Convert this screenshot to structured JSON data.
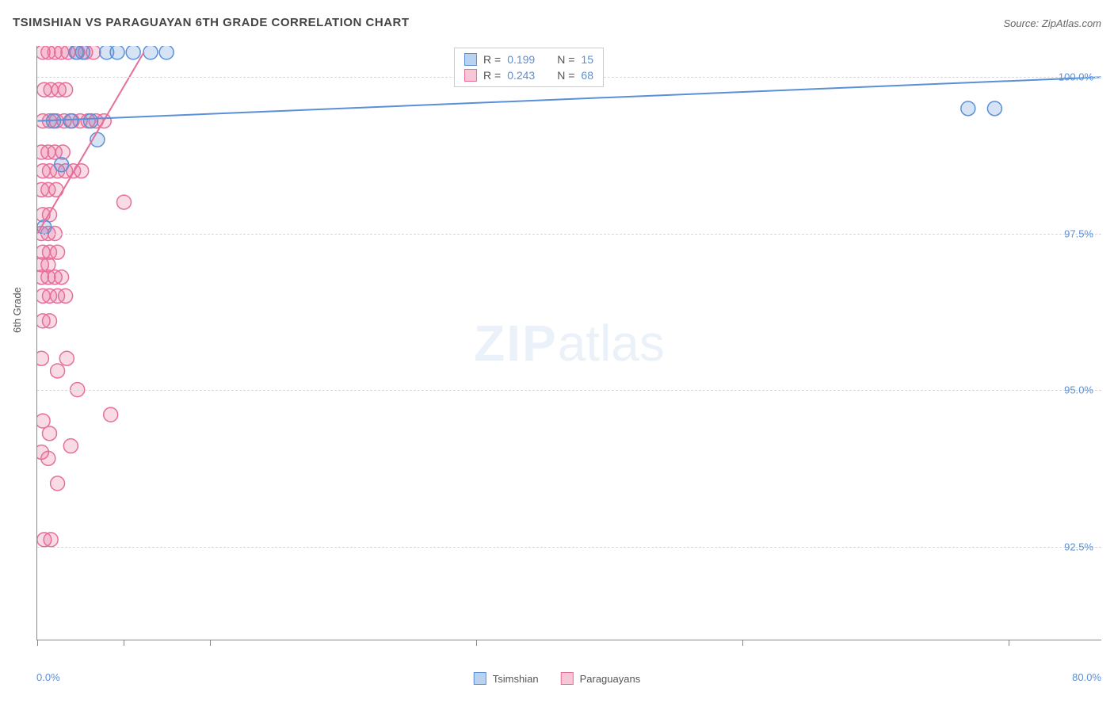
{
  "title": "TSIMSHIAN VS PARAGUAYAN 6TH GRADE CORRELATION CHART",
  "source": "Source: ZipAtlas.com",
  "ylabel": "6th Grade",
  "watermark_bold": "ZIP",
  "watermark_light": "atlas",
  "chart": {
    "type": "scatter",
    "background_color": "#ffffff",
    "grid_color": "#d8d8d8",
    "axis_color": "#888888",
    "text_color": "#555555",
    "value_color": "#5b8fd6",
    "xlim": [
      0.0,
      80.0
    ],
    "ylim": [
      91.0,
      100.5
    ],
    "yticks": [
      {
        "value": 100.0,
        "label": "100.0%"
      },
      {
        "value": 97.5,
        "label": "97.5%"
      },
      {
        "value": 95.0,
        "label": "95.0%"
      },
      {
        "value": 92.5,
        "label": "92.5%"
      }
    ],
    "xticks_at": [
      0,
      6.5,
      13,
      33,
      53,
      73
    ],
    "xaxis_labels": {
      "left": "0.0%",
      "right": "80.0%"
    },
    "marker_radius": 9,
    "marker_stroke_width": 1.5,
    "marker_fill_opacity": 0.25,
    "trend_line_width": 2
  },
  "series": {
    "tsimshian": {
      "label": "Tsimshian",
      "color": "#5b8fd6",
      "fill": "#b9d2f0",
      "R_label": "R = ",
      "R_value": "0.199",
      "N_label": "N = ",
      "N_value": "15",
      "trend": {
        "x1": 0.0,
        "y1": 99.3,
        "x2": 80.0,
        "y2": 100.0
      },
      "points": [
        {
          "x": 0.5,
          "y": 97.6
        },
        {
          "x": 1.2,
          "y": 99.3
        },
        {
          "x": 1.8,
          "y": 98.6
        },
        {
          "x": 2.5,
          "y": 99.3
        },
        {
          "x": 2.9,
          "y": 100.4
        },
        {
          "x": 3.4,
          "y": 100.4
        },
        {
          "x": 4.0,
          "y": 99.3
        },
        {
          "x": 4.5,
          "y": 99.0
        },
        {
          "x": 5.2,
          "y": 100.4
        },
        {
          "x": 6.0,
          "y": 100.4
        },
        {
          "x": 7.2,
          "y": 100.4
        },
        {
          "x": 8.5,
          "y": 100.4
        },
        {
          "x": 9.7,
          "y": 100.4
        },
        {
          "x": 70.0,
          "y": 99.5
        },
        {
          "x": 72.0,
          "y": 99.5
        }
      ]
    },
    "paraguayans": {
      "label": "Paraguayans",
      "color": "#e66f9a",
      "fill": "#f7c6d7",
      "R_label": "R = ",
      "R_value": "0.243",
      "N_label": "N = ",
      "N_value": "68",
      "trend": {
        "x1": 0.0,
        "y1": 97.5,
        "x2": 8.0,
        "y2": 100.4
      },
      "points": [
        {
          "x": 0.4,
          "y": 100.4
        },
        {
          "x": 0.8,
          "y": 100.4
        },
        {
          "x": 1.3,
          "y": 100.4
        },
        {
          "x": 1.8,
          "y": 100.4
        },
        {
          "x": 2.3,
          "y": 100.4
        },
        {
          "x": 3.0,
          "y": 100.4
        },
        {
          "x": 3.6,
          "y": 100.4
        },
        {
          "x": 0.5,
          "y": 99.8
        },
        {
          "x": 1.0,
          "y": 99.8
        },
        {
          "x": 1.6,
          "y": 99.8
        },
        {
          "x": 2.1,
          "y": 99.8
        },
        {
          "x": 0.4,
          "y": 99.3
        },
        {
          "x": 0.9,
          "y": 99.3
        },
        {
          "x": 1.4,
          "y": 99.3
        },
        {
          "x": 2.0,
          "y": 99.3
        },
        {
          "x": 2.6,
          "y": 99.3
        },
        {
          "x": 3.2,
          "y": 99.3
        },
        {
          "x": 3.8,
          "y": 99.3
        },
        {
          "x": 4.4,
          "y": 99.3
        },
        {
          "x": 0.3,
          "y": 98.8
        },
        {
          "x": 0.8,
          "y": 98.8
        },
        {
          "x": 1.3,
          "y": 98.8
        },
        {
          "x": 1.9,
          "y": 98.8
        },
        {
          "x": 0.4,
          "y": 98.5
        },
        {
          "x": 0.9,
          "y": 98.5
        },
        {
          "x": 1.5,
          "y": 98.5
        },
        {
          "x": 2.1,
          "y": 98.5
        },
        {
          "x": 2.7,
          "y": 98.5
        },
        {
          "x": 3.3,
          "y": 98.5
        },
        {
          "x": 0.3,
          "y": 98.2
        },
        {
          "x": 0.8,
          "y": 98.2
        },
        {
          "x": 1.4,
          "y": 98.2
        },
        {
          "x": 6.5,
          "y": 98.0
        },
        {
          "x": 0.4,
          "y": 97.8
        },
        {
          "x": 0.9,
          "y": 97.8
        },
        {
          "x": 0.3,
          "y": 97.5
        },
        {
          "x": 0.8,
          "y": 97.5
        },
        {
          "x": 1.3,
          "y": 97.5
        },
        {
          "x": 0.4,
          "y": 97.2
        },
        {
          "x": 0.9,
          "y": 97.2
        },
        {
          "x": 1.5,
          "y": 97.2
        },
        {
          "x": 0.3,
          "y": 97.0
        },
        {
          "x": 0.8,
          "y": 97.0
        },
        {
          "x": 0.3,
          "y": 96.8
        },
        {
          "x": 0.8,
          "y": 96.8
        },
        {
          "x": 1.3,
          "y": 96.8
        },
        {
          "x": 1.8,
          "y": 96.8
        },
        {
          "x": 0.4,
          "y": 96.5
        },
        {
          "x": 0.9,
          "y": 96.5
        },
        {
          "x": 1.5,
          "y": 96.5
        },
        {
          "x": 2.1,
          "y": 96.5
        },
        {
          "x": 0.4,
          "y": 96.1
        },
        {
          "x": 0.9,
          "y": 96.1
        },
        {
          "x": 0.3,
          "y": 95.5
        },
        {
          "x": 2.2,
          "y": 95.5
        },
        {
          "x": 1.5,
          "y": 95.3
        },
        {
          "x": 3.0,
          "y": 95.0
        },
        {
          "x": 5.5,
          "y": 94.6
        },
        {
          "x": 0.4,
          "y": 94.5
        },
        {
          "x": 0.9,
          "y": 94.3
        },
        {
          "x": 2.5,
          "y": 94.1
        },
        {
          "x": 0.3,
          "y": 94.0
        },
        {
          "x": 0.8,
          "y": 93.9
        },
        {
          "x": 1.5,
          "y": 93.5
        },
        {
          "x": 0.5,
          "y": 92.6
        },
        {
          "x": 1.0,
          "y": 92.6
        },
        {
          "x": 4.2,
          "y": 100.4
        },
        {
          "x": 5.0,
          "y": 99.3
        }
      ]
    }
  }
}
